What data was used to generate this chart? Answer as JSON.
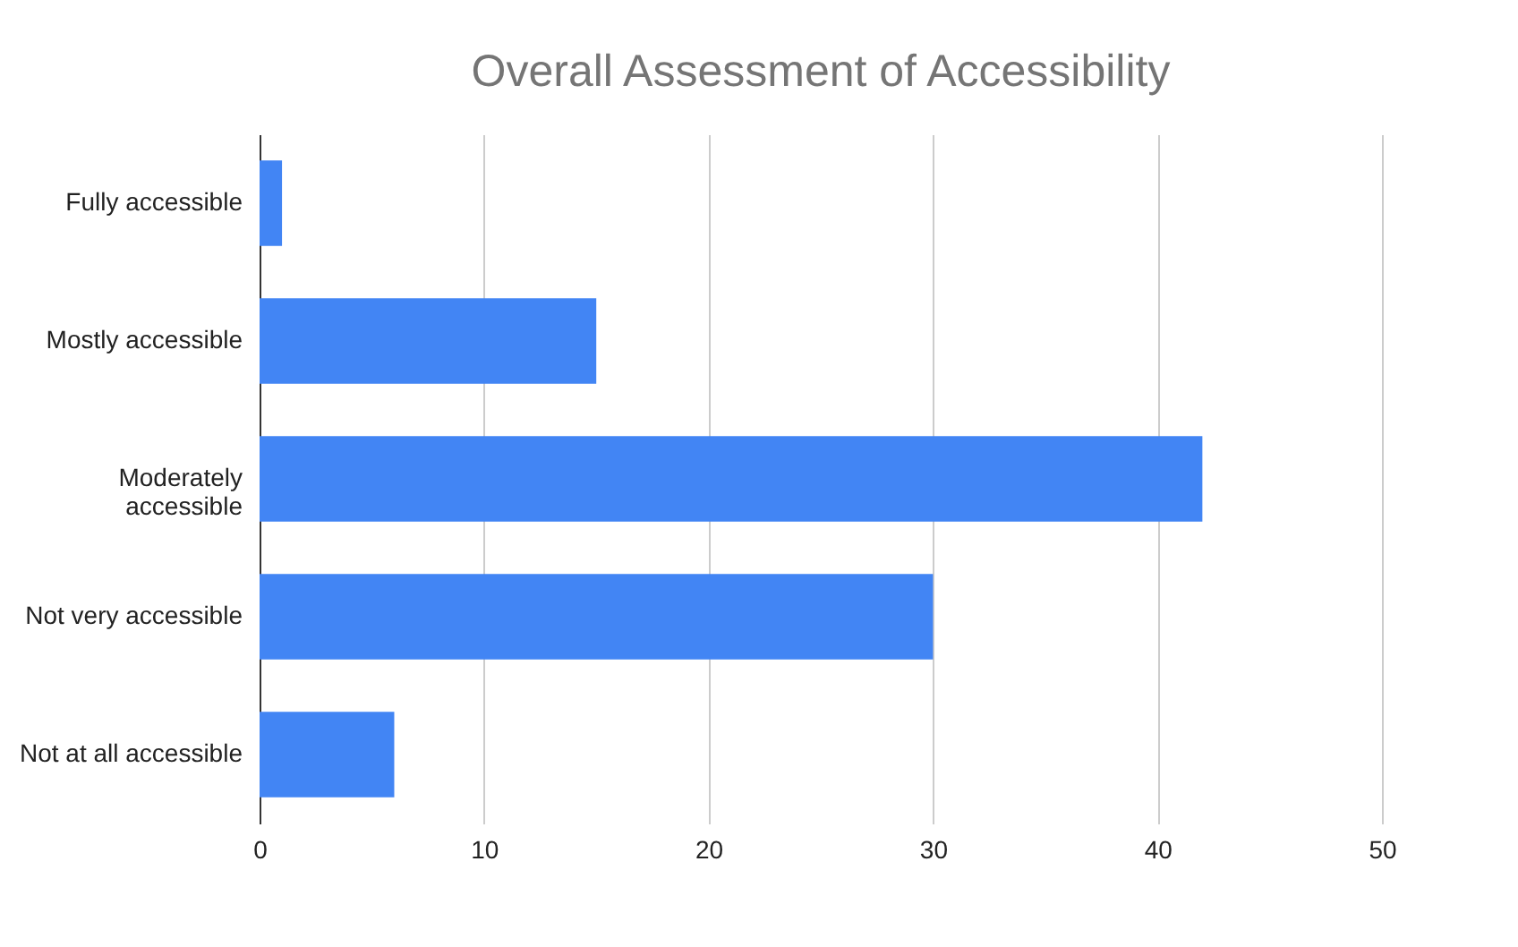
{
  "chart_data": {
    "type": "bar",
    "orientation": "horizontal",
    "title": "Overall Assessment of Accessibility",
    "categories": [
      "Fully accessible",
      "Mostly accessible",
      "Moderately\naccessible",
      "Not very accessible",
      "Not at all accessible"
    ],
    "values": [
      1,
      15,
      42,
      30,
      6
    ],
    "color": "#4285f4",
    "xlim": [
      0,
      50
    ],
    "xticks": [
      0,
      10,
      20,
      30,
      40,
      50
    ],
    "grid": "x"
  }
}
